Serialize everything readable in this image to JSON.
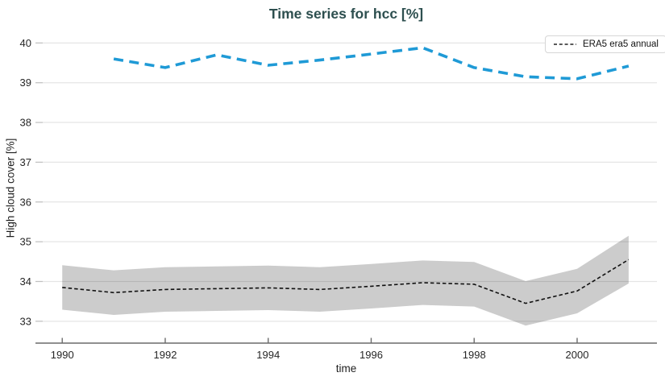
{
  "colors": {
    "title": "#2d4f4f",
    "axis_text": "#262626",
    "axis_line": "#6b6b6b",
    "grid_line": "rgba(0,0,0,0.10)",
    "band_fill": "#cccccc",
    "black_series": "#111111",
    "blue_series": "#1f9ad6",
    "legend_border": "#d6d6d6"
  },
  "chart_data": {
    "type": "line",
    "title": "Time series for hcc [%]",
    "xlabel": "time",
    "ylabel": "High cloud cover [%]",
    "xlim": [
      1989.48,
      2001.55
    ],
    "ylim": [
      32.45,
      40.27
    ],
    "x_ticks": [
      1990,
      1992,
      1994,
      1996,
      1998,
      2000
    ],
    "y_ticks": [
      33,
      34,
      35,
      36,
      37,
      38,
      39,
      40
    ],
    "grid": "horizontal",
    "legend": {
      "position": "top-right",
      "entries": [
        {
          "label": "ERA5 era5 annual",
          "sample": "black-dashed-line"
        }
      ]
    },
    "series": [
      {
        "name": "blue dashed annual series (unlabeled)",
        "color": "#1f9ad6",
        "dash": "dashed",
        "x": [
          1991,
          1992,
          1993,
          1994,
          1995,
          1996,
          1997,
          1998,
          1999,
          2000,
          2001
        ],
        "values": [
          39.6,
          39.38,
          39.7,
          39.44,
          39.57,
          39.72,
          39.88,
          39.38,
          39.15,
          39.1,
          39.42
        ]
      },
      {
        "name": "ERA5 era5 annual",
        "color": "#111111",
        "dash": "dashed",
        "band_color": "#cccccc",
        "x": [
          1990,
          1991,
          1992,
          1993,
          1994,
          1995,
          1996,
          1997,
          1998,
          1999,
          2000,
          2001
        ],
        "values": [
          33.85,
          33.72,
          33.8,
          33.82,
          33.84,
          33.8,
          33.88,
          33.97,
          33.93,
          33.45,
          33.76,
          34.55
        ],
        "band_lower": [
          33.29,
          33.16,
          33.24,
          33.26,
          33.28,
          33.24,
          33.32,
          33.41,
          33.37,
          32.89,
          33.2,
          33.95
        ],
        "band_upper": [
          34.41,
          34.28,
          34.36,
          34.38,
          34.4,
          34.36,
          34.44,
          34.53,
          34.49,
          34.01,
          34.32,
          35.15
        ]
      }
    ]
  }
}
